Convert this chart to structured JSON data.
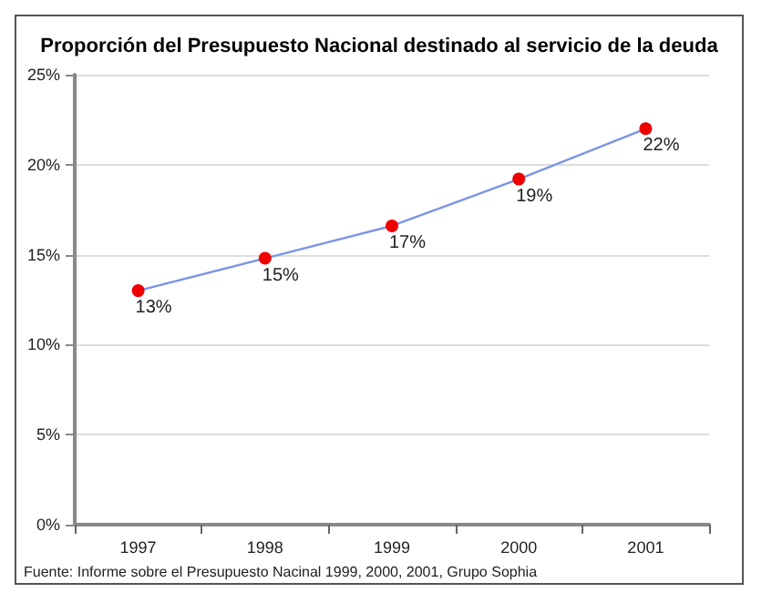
{
  "chart_data": {
    "type": "line",
    "title": "Proporción del Presupuesto Nacional destinado al servicio de la deuda",
    "categories": [
      "1997",
      "1998",
      "1999",
      "2000",
      "2001"
    ],
    "series": [
      {
        "color": "#7b93e6",
        "colors": [
          "#ee0000",
          "#ee0000",
          "#ee0000",
          "#ee0000",
          "#ee0000"
        ],
        "values": [
          13.0,
          14.8,
          16.6,
          19.2,
          22.0
        ],
        "value_labels": [
          "13%",
          "15%",
          "17%",
          "19%",
          "22%"
        ]
      }
    ],
    "ylim": [
      0,
      25
    ],
    "yticks": [
      {
        "value": 0,
        "label": "0%"
      },
      {
        "value": 5,
        "label": "5%"
      },
      {
        "value": 10,
        "label": "10%"
      },
      {
        "value": 15,
        "label": "15%"
      },
      {
        "value": 20,
        "label": "20%"
      },
      {
        "value": 25,
        "label": "25%"
      }
    ],
    "grid": "y",
    "marker": "circle",
    "annotations": [
      "Fuente: Informe sobre el Presupuesto Nacinal 1999, 2000, 2001, Grupo Sophia"
    ]
  }
}
